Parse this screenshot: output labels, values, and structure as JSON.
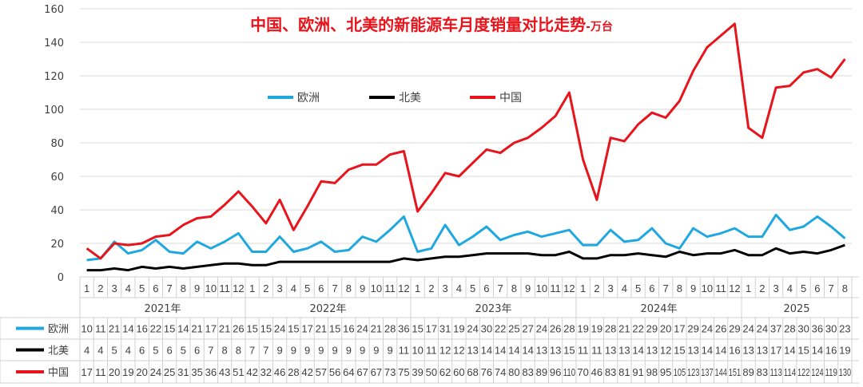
{
  "chart_data": {
    "type": "line",
    "title": "中国、欧洲、北美的新能源车月度销量对比走势",
    "title_suffix": "-万台",
    "ylim": [
      0,
      160
    ],
    "yticks": [
      0,
      20,
      40,
      60,
      80,
      100,
      120,
      140,
      160
    ],
    "grid": true,
    "legend_position": "top-center",
    "years": [
      "2021年",
      "2022年",
      "2023年",
      "2024年",
      "2025"
    ],
    "months_per_year": [
      12,
      12,
      12,
      12,
      8
    ],
    "series": [
      {
        "name": "欧洲",
        "color": "#1fa8e0",
        "values": [
          10,
          11,
          21,
          14,
          16,
          22,
          15,
          14,
          21,
          17,
          21,
          26,
          15,
          15,
          24,
          15,
          17,
          21,
          15,
          16,
          24,
          21,
          28,
          36,
          15,
          17,
          31,
          19,
          24,
          30,
          22,
          25,
          27,
          24,
          26,
          28,
          19,
          19,
          28,
          21,
          22,
          29,
          20,
          17,
          29,
          24,
          26,
          29,
          24,
          24,
          37,
          28,
          30,
          36,
          30,
          23
        ]
      },
      {
        "name": "北美",
        "color": "#000000",
        "values": [
          4,
          4,
          5,
          4,
          6,
          5,
          6,
          5,
          6,
          7,
          8,
          8,
          7,
          7,
          9,
          9,
          9,
          9,
          9,
          9,
          9,
          9,
          9,
          11,
          10,
          11,
          12,
          12,
          13,
          14,
          14,
          14,
          14,
          13,
          13,
          15,
          11,
          11,
          13,
          13,
          14,
          13,
          12,
          15,
          13,
          14,
          14,
          16,
          13,
          13,
          17,
          14,
          15,
          14,
          16,
          19
        ]
      },
      {
        "name": "中国",
        "color": "#e8141b",
        "values": [
          17,
          11,
          20,
          19,
          20,
          24,
          25,
          31,
          35,
          36,
          43,
          51,
          42,
          32,
          46,
          28,
          42,
          57,
          56,
          64,
          67,
          67,
          73,
          75,
          39,
          50,
          62,
          60,
          68,
          76,
          74,
          80,
          83,
          89,
          96,
          110,
          70,
          46,
          83,
          81,
          91,
          98,
          95,
          105,
          123,
          137,
          144,
          151,
          89,
          83,
          113,
          114,
          122,
          124,
          119,
          130
        ]
      }
    ]
  }
}
